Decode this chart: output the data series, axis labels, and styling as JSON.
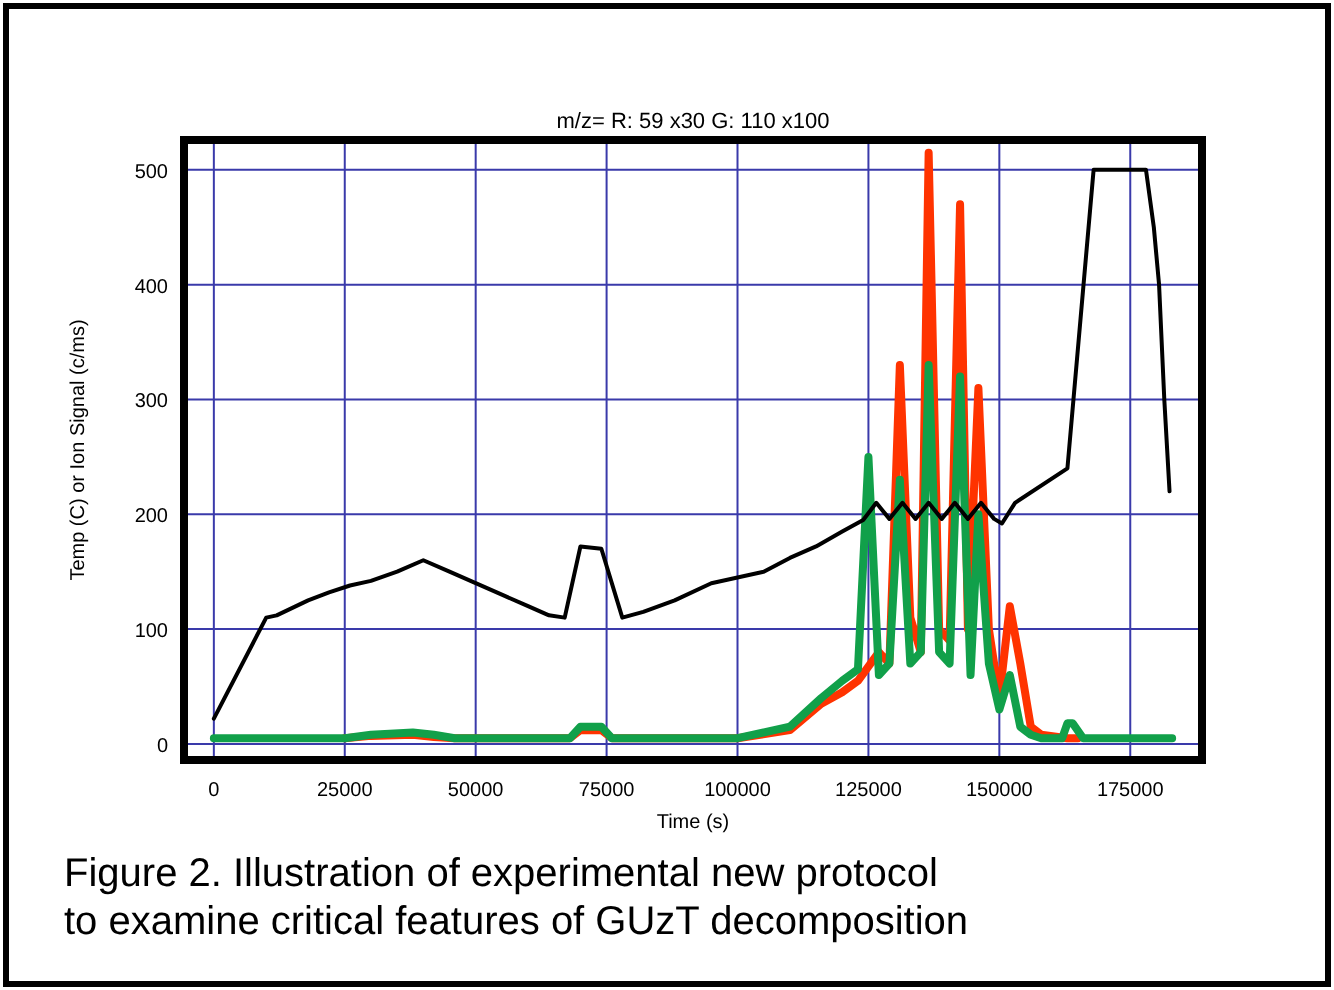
{
  "chart_data": {
    "type": "line",
    "title": "m/z= R: 59 x30 G: 110 x100",
    "xlabel": "Time (s)",
    "ylabel": "Temp (C) or Ion Signal (c/ms)",
    "xlim": [
      -5700,
      188700
    ],
    "ylim": [
      -14,
      526
    ],
    "xticks": [
      0,
      25000,
      50000,
      75000,
      100000,
      125000,
      150000,
      175000
    ],
    "yticks": [
      0,
      100,
      200,
      300,
      400,
      500
    ],
    "grid": true,
    "marker": "none",
    "line_style": "solid",
    "annotations": [
      "Figure 2. Illustration of experimental new protocol to examine critical features of GUzT decomposition"
    ],
    "series": [
      {
        "color": "#ff3300",
        "x": [
          25000,
          30000,
          38000,
          42000,
          46000,
          68000,
          70000,
          74000,
          76000,
          100000,
          110000,
          116000,
          120000,
          123000,
          127000,
          129000,
          131000,
          133000,
          135000,
          136500,
          138500,
          140500,
          142500,
          144000,
          146000,
          148000,
          150000,
          152000,
          154000,
          156000,
          158000,
          163000,
          165000
        ],
        "values": [
          5,
          7,
          8,
          6,
          5,
          5,
          12,
          12,
          5,
          5,
          12,
          35,
          45,
          55,
          80,
          70,
          330,
          110,
          80,
          515,
          100,
          90,
          470,
          100,
          310,
          100,
          40,
          120,
          70,
          15,
          8,
          5,
          5
        ]
      },
      {
        "color": "#11a04a",
        "x": [
          0,
          25000,
          30000,
          38000,
          42000,
          46000,
          68000,
          70000,
          74000,
          76000,
          100000,
          110000,
          116000,
          120000,
          123000,
          125000,
          127000,
          129000,
          131000,
          133000,
          135000,
          136500,
          138500,
          140500,
          142500,
          144500,
          146000,
          148000,
          150000,
          152000,
          154000,
          156000,
          158000,
          162000,
          163000,
          164000,
          166000,
          183000
        ],
        "values": [
          5,
          5,
          8,
          10,
          8,
          5,
          5,
          15,
          15,
          5,
          5,
          15,
          40,
          55,
          65,
          250,
          60,
          70,
          230,
          70,
          80,
          330,
          80,
          70,
          320,
          60,
          200,
          70,
          30,
          60,
          15,
          8,
          5,
          5,
          18,
          18,
          5,
          5
        ]
      },
      {
        "color": "#000000",
        "x": [
          0,
          10000,
          12000,
          18000,
          22000,
          26000,
          30000,
          35000,
          40000,
          45000,
          50000,
          55000,
          60000,
          64000,
          67000,
          70000,
          74000,
          78000,
          82000,
          88000,
          95000,
          105000,
          110000,
          115000,
          120000,
          124000,
          126500,
          129000,
          131500,
          134000,
          136500,
          139000,
          141500,
          144000,
          146500,
          149000,
          150500,
          153000,
          163000,
          168000,
          178000,
          179500,
          180500,
          181500,
          182500
        ],
        "values": [
          22,
          110,
          112,
          125,
          132,
          138,
          142,
          150,
          160,
          150,
          140,
          130,
          120,
          112,
          110,
          172,
          170,
          110,
          115,
          125,
          140,
          150,
          162,
          172,
          185,
          195,
          210,
          196,
          210,
          196,
          210,
          196,
          210,
          196,
          210,
          196,
          192,
          210,
          240,
          500,
          500,
          450,
          400,
          300,
          220
        ]
      }
    ]
  }
}
